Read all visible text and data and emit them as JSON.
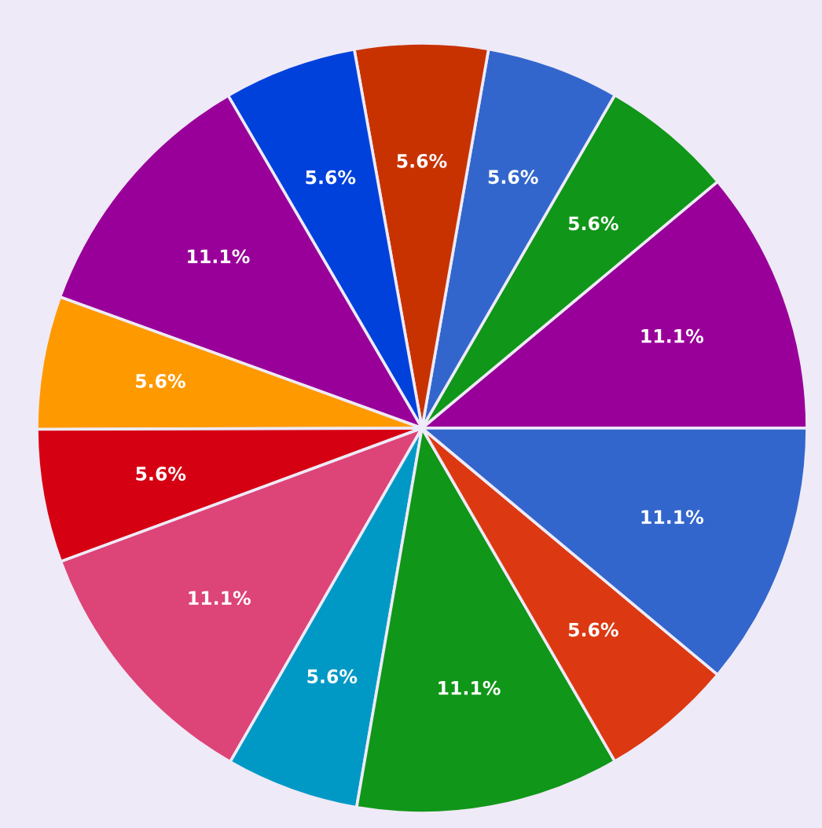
{
  "chart_data": {
    "type": "pie",
    "categories": [
      null,
      null,
      null,
      null,
      null,
      null,
      null,
      null,
      null,
      null,
      null,
      null,
      null
    ],
    "values": [
      11.1,
      5.6,
      5.6,
      5.6,
      5.6,
      11.1,
      5.6,
      5.6,
      11.1,
      5.6,
      11.1,
      5.6,
      11.1
    ],
    "colors": [
      "#990099",
      "#109618",
      "#3366cc",
      "#c83200",
      "#0041dc",
      "#990099",
      "#ff9900",
      "#d60013",
      "#dd4477",
      "#0099c6",
      "#109618",
      "#dc3912",
      "#3366cc"
    ],
    "value_labels": [
      "11.1%",
      "5.6%",
      "5.6%",
      "5.6%",
      "5.6%",
      "11.1%",
      "5.6%",
      "5.6%",
      "11.1%",
      "5.6%",
      "11.1%",
      "5.6%",
      "11.1%"
    ]
  }
}
